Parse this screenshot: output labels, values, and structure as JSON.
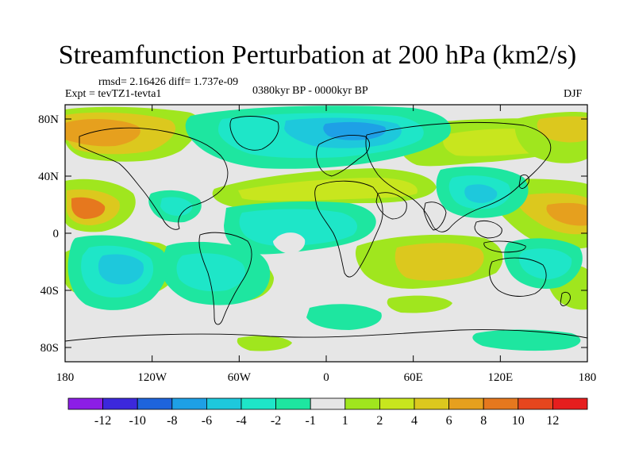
{
  "title": "Streamfunction Perturbation at 200 hPa (km2/s)",
  "stats": "rmsd= 2.16426  diff= 1.737e-09",
  "experiment": "Expt = tevTZ1-tevta1",
  "period": "0380kyr BP - 0000kyr BP",
  "season": "DJF",
  "lat_ticks": [
    "80N",
    "40N",
    "0",
    "40S",
    "80S"
  ],
  "lat_values": [
    80,
    40,
    0,
    -40,
    -80
  ],
  "lon_ticks": [
    "180",
    "120W",
    "60W",
    "0",
    "60E",
    "120E",
    "180"
  ],
  "lon_values": [
    -180,
    -120,
    -60,
    0,
    60,
    120,
    180
  ],
  "colorbar": {
    "colors": [
      "#8c1ee6",
      "#3c28dc",
      "#1e64dc",
      "#1ea0e6",
      "#1ec8dc",
      "#1ee6c8",
      "#1ee6a0",
      "#e6e6e6",
      "#a0e61e",
      "#c8e61e",
      "#dcc81e",
      "#e6a01e",
      "#e6781e",
      "#e6461e",
      "#e61e1e"
    ],
    "labels": [
      "-12",
      "-10",
      "-8",
      "-6",
      "-4",
      "-2",
      "-1",
      "1",
      "2",
      "4",
      "6",
      "8",
      "10",
      "12"
    ]
  },
  "map_colors": {
    "neg_weak": "#1ee6a0",
    "neg_mid": "#1ee6c8",
    "neg_strong": "#1ec8dc",
    "neg_deep": "#1ea0e6",
    "neutral": "#e6e6e6",
    "pos_weak": "#a0e61e",
    "pos_mid": "#c8e61e",
    "pos_strong": "#dcc81e",
    "pos_deep": "#e6a01e",
    "pos_max": "#e6781e"
  }
}
